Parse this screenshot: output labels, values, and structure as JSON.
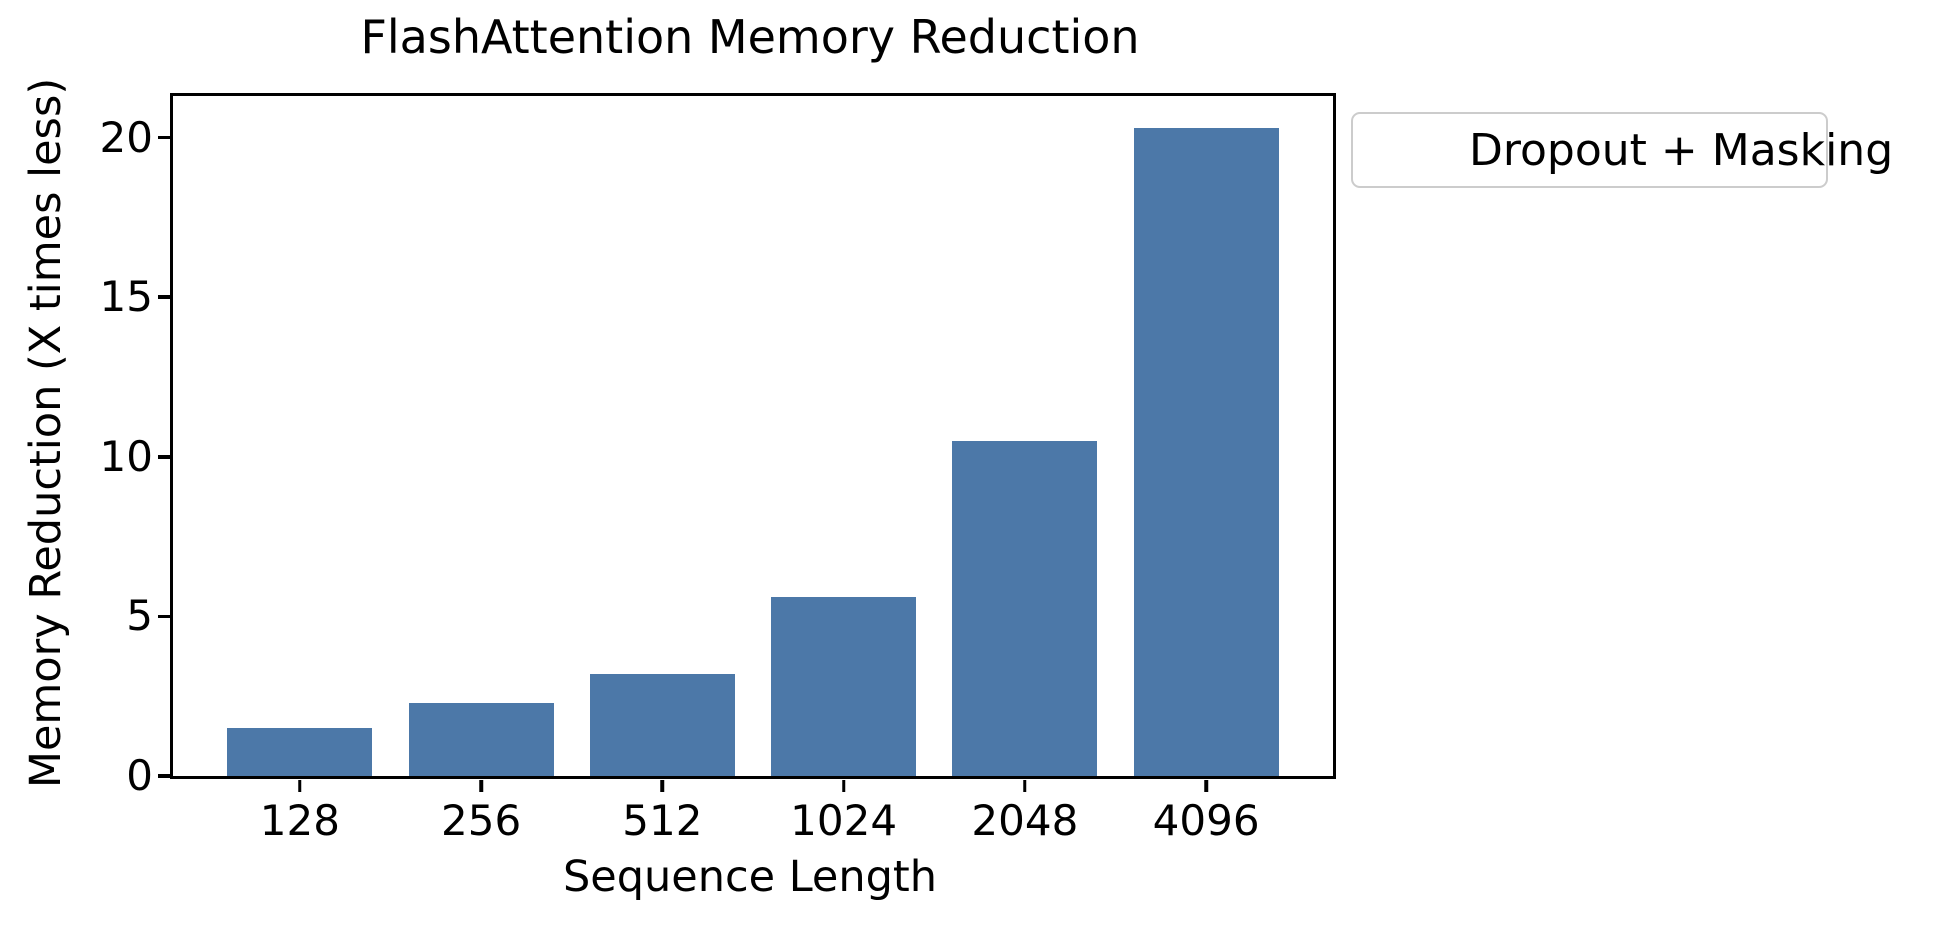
{
  "chart_data": {
    "type": "bar",
    "title": "FlashAttention Memory Reduction",
    "xlabel": "Sequence Length",
    "ylabel": "Memory Reduction (X times less)",
    "categories": [
      "128",
      "256",
      "512",
      "1024",
      "2048",
      "4096"
    ],
    "series": [
      {
        "name": "Dropout + Masking",
        "values": [
          1.5,
          2.3,
          3.2,
          5.6,
          10.5,
          20.3
        ]
      }
    ],
    "yticks": [
      0,
      5,
      10,
      15,
      20
    ],
    "ylim": [
      0,
      21.3
    ],
    "grid": false,
    "legend_position": "outside-upper-right",
    "bar_color": "#4C78A8",
    "bar_width_fraction": 0.8
  },
  "colors": {
    "bar": "#4C78A8",
    "axis": "#000000",
    "legend_border": "#cccccc",
    "background": "#ffffff"
  }
}
